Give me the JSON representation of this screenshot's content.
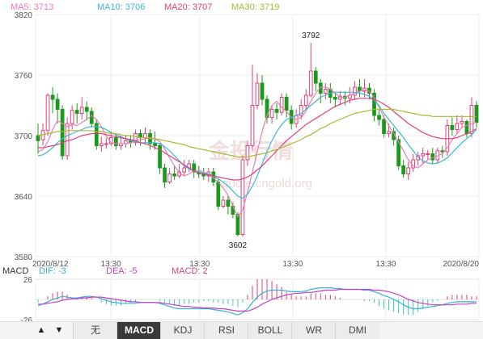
{
  "legend": {
    "ma5": {
      "label": "MA5: 3713",
      "color": "#e97fb4"
    },
    "ma10": {
      "label": "MA10: 3706",
      "color": "#3cb6d8"
    },
    "ma20": {
      "label": "MA20: 3707",
      "color": "#e0407a"
    },
    "ma30": {
      "label": "MA30: 3719",
      "color": "#a8b830"
    }
  },
  "macd_legend": {
    "title": "MACD",
    "dif": {
      "label": "DIF: -3",
      "color": "#33b3d9"
    },
    "dea": {
      "label": "DEA: -5",
      "color": "#c43fc4"
    },
    "macd": {
      "label": "MACD: 2",
      "color": "#e0407a"
    }
  },
  "watermark": {
    "text": "金投行情",
    "url": "quote.cngold.org"
  },
  "toolbar": {
    "tabs": [
      "无",
      "MACD",
      "KDJ",
      "RSI",
      "BOLL",
      "WR",
      "DMI"
    ],
    "active": "MACD",
    "up_arrow": "▲",
    "down_arrow": "▼"
  },
  "chart_data": [
    {
      "type": "candlestick",
      "ylim": [
        3580,
        3820
      ],
      "y_ticks": [
        "3820",
        "3760",
        "3700",
        "3640",
        "3580"
      ],
      "x_tick_labels": [
        "2020/8/12",
        "13:30",
        "13:30",
        "13:30",
        "13:30",
        "2020/8/20"
      ],
      "annotations": {
        "high": "3792",
        "low": "3602"
      },
      "up_color": "#e0407a",
      "down_color": "#1a9a1a",
      "candles": [
        [
          3700,
          3695,
          3712,
          3682
        ],
        [
          3696,
          3705,
          3712,
          3690
        ],
        [
          3705,
          3740,
          3742,
          3700
        ],
        [
          3740,
          3736,
          3748,
          3722
        ],
        [
          3736,
          3726,
          3742,
          3712
        ],
        [
          3726,
          3680,
          3730,
          3676
        ],
        [
          3680,
          3712,
          3718,
          3676
        ],
        [
          3712,
          3725,
          3730,
          3706
        ],
        [
          3725,
          3722,
          3732,
          3712
        ],
        [
          3722,
          3728,
          3738,
          3716
        ],
        [
          3728,
          3724,
          3734,
          3715
        ],
        [
          3724,
          3712,
          3728,
          3708
        ],
        [
          3712,
          3690,
          3716,
          3686
        ],
        [
          3690,
          3692,
          3699,
          3684
        ],
        [
          3692,
          3692,
          3698,
          3687
        ],
        [
          3692,
          3698,
          3704,
          3690
        ],
        [
          3698,
          3690,
          3702,
          3686
        ],
        [
          3690,
          3692,
          3700,
          3686
        ],
        [
          3692,
          3695,
          3700,
          3688
        ],
        [
          3695,
          3693,
          3700,
          3688
        ],
        [
          3693,
          3702,
          3706,
          3690
        ],
        [
          3702,
          3698,
          3706,
          3690
        ],
        [
          3698,
          3702,
          3708,
          3692
        ],
        [
          3702,
          3692,
          3706,
          3686
        ],
        [
          3692,
          3690,
          3704,
          3686
        ],
        [
          3690,
          3668,
          3692,
          3662
        ],
        [
          3668,
          3654,
          3672,
          3648
        ],
        [
          3654,
          3662,
          3668,
          3652
        ],
        [
          3662,
          3660,
          3670,
          3656
        ],
        [
          3660,
          3664,
          3672,
          3658
        ],
        [
          3664,
          3668,
          3676,
          3660
        ],
        [
          3668,
          3672,
          3676,
          3664
        ],
        [
          3672,
          3664,
          3676,
          3658
        ],
        [
          3664,
          3662,
          3670,
          3658
        ],
        [
          3662,
          3660,
          3668,
          3656
        ],
        [
          3660,
          3664,
          3668,
          3654
        ],
        [
          3664,
          3654,
          3668,
          3650
        ],
        [
          3654,
          3630,
          3658,
          3626
        ],
        [
          3630,
          3636,
          3640,
          3628
        ],
        [
          3636,
          3630,
          3640,
          3622
        ],
        [
          3630,
          3622,
          3634,
          3618
        ],
        [
          3622,
          3602,
          3624,
          3600
        ],
        [
          3602,
          3676,
          3680,
          3600
        ],
        [
          3676,
          3690,
          3695,
          3670
        ],
        [
          3690,
          3730,
          3770,
          3686
        ],
        [
          3730,
          3752,
          3762,
          3726
        ],
        [
          3752,
          3736,
          3760,
          3730
        ],
        [
          3736,
          3718,
          3740,
          3712
        ],
        [
          3718,
          3726,
          3730,
          3712
        ],
        [
          3726,
          3723,
          3732,
          3716
        ],
        [
          3723,
          3738,
          3742,
          3720
        ],
        [
          3738,
          3725,
          3742,
          3718
        ],
        [
          3725,
          3712,
          3730,
          3706
        ],
        [
          3712,
          3720,
          3726,
          3708
        ],
        [
          3720,
          3730,
          3736,
          3716
        ],
        [
          3730,
          3740,
          3746,
          3726
        ],
        [
          3740,
          3764,
          3792,
          3738
        ],
        [
          3764,
          3752,
          3768,
          3744
        ],
        [
          3752,
          3742,
          3756,
          3732
        ],
        [
          3742,
          3746,
          3752,
          3736
        ],
        [
          3746,
          3738,
          3752,
          3732
        ],
        [
          3738,
          3736,
          3742,
          3728
        ],
        [
          3736,
          3739,
          3744,
          3730
        ],
        [
          3739,
          3737,
          3744,
          3730
        ],
        [
          3737,
          3740,
          3748,
          3732
        ],
        [
          3740,
          3748,
          3754,
          3736
        ],
        [
          3748,
          3744,
          3756,
          3738
        ],
        [
          3744,
          3747,
          3756,
          3738
        ],
        [
          3747,
          3742,
          3752,
          3736
        ],
        [
          3742,
          3720,
          3746,
          3714
        ],
        [
          3720,
          3716,
          3726,
          3710
        ],
        [
          3716,
          3702,
          3720,
          3698
        ],
        [
          3702,
          3704,
          3712,
          3698
        ],
        [
          3704,
          3696,
          3708,
          3690
        ],
        [
          3696,
          3670,
          3700,
          3666
        ],
        [
          3670,
          3662,
          3676,
          3658
        ],
        [
          3662,
          3668,
          3674,
          3656
        ],
        [
          3668,
          3676,
          3682,
          3664
        ],
        [
          3676,
          3680,
          3684,
          3670
        ],
        [
          3680,
          3682,
          3688,
          3672
        ],
        [
          3682,
          3682,
          3686,
          3676
        ],
        [
          3682,
          3676,
          3688,
          3672
        ],
        [
          3676,
          3685,
          3688,
          3672
        ],
        [
          3685,
          3684,
          3690,
          3678
        ],
        [
          3684,
          3710,
          3716,
          3680
        ],
        [
          3710,
          3706,
          3718,
          3700
        ],
        [
          3706,
          3712,
          3720,
          3702
        ],
        [
          3712,
          3714,
          3720,
          3708
        ],
        [
          3714,
          3702,
          3716,
          3698
        ],
        [
          3702,
          3730,
          3738,
          3698
        ],
        [
          3730,
          3713,
          3734,
          3708
        ]
      ],
      "series": [
        {
          "name": "MA5",
          "color": "#e97fb4",
          "values": [
            3684,
            3686,
            3694,
            3706,
            3715,
            3712,
            3709,
            3711,
            3710,
            3713,
            3716,
            3720,
            3716,
            3709,
            3700,
            3693,
            3692,
            3692,
            3692,
            3693,
            3695,
            3696,
            3697,
            3698,
            3697,
            3694,
            3687,
            3678,
            3670,
            3663,
            3660,
            3662,
            3665,
            3666,
            3664,
            3661,
            3658,
            3654,
            3648,
            3641,
            3630,
            3620,
            3626,
            3644,
            3664,
            3684,
            3704,
            3720,
            3730,
            3734,
            3728,
            3724,
            3718,
            3716,
            3718,
            3724,
            3734,
            3742,
            3748,
            3748,
            3746,
            3742,
            3738,
            3738,
            3740,
            3742,
            3744,
            3745,
            3744,
            3738,
            3728,
            3718,
            3710,
            3702,
            3694,
            3685,
            3676,
            3670,
            3668,
            3672,
            3676,
            3678,
            3680,
            3682,
            3688,
            3696,
            3702,
            3708,
            3710,
            3712,
            3713
          ]
        },
        {
          "name": "MA10",
          "color": "#3cb6d8",
          "values": [
            3680,
            3681,
            3684,
            3688,
            3693,
            3697,
            3700,
            3702,
            3704,
            3706,
            3708,
            3709,
            3709,
            3708,
            3706,
            3703,
            3701,
            3699,
            3697,
            3695,
            3694,
            3693,
            3693,
            3693,
            3693,
            3692,
            3689,
            3685,
            3680,
            3675,
            3670,
            3667,
            3665,
            3664,
            3663,
            3662,
            3660,
            3657,
            3654,
            3650,
            3645,
            3640,
            3638,
            3642,
            3650,
            3660,
            3672,
            3684,
            3695,
            3704,
            3711,
            3716,
            3718,
            3720,
            3722,
            3726,
            3730,
            3734,
            3738,
            3740,
            3742,
            3743,
            3743,
            3743,
            3743,
            3743,
            3742,
            3741,
            3739,
            3735,
            3730,
            3722,
            3716,
            3710,
            3704,
            3698,
            3691,
            3685,
            3679,
            3675,
            3673,
            3672,
            3673,
            3675,
            3678,
            3683,
            3688,
            3693,
            3697,
            3701,
            3706
          ]
        },
        {
          "name": "MA20",
          "color": "#e0407a",
          "values": [
            3688,
            3688,
            3689,
            3690,
            3691,
            3693,
            3695,
            3696,
            3698,
            3700,
            3701,
            3702,
            3702,
            3702,
            3701,
            3700,
            3699,
            3698,
            3697,
            3696,
            3695,
            3693,
            3692,
            3690,
            3688,
            3686,
            3683,
            3680,
            3677,
            3674,
            3671,
            3668,
            3665,
            3663,
            3662,
            3661,
            3660,
            3659,
            3658,
            3657,
            3656,
            3656,
            3657,
            3659,
            3662,
            3666,
            3670,
            3675,
            3680,
            3685,
            3690,
            3695,
            3699,
            3703,
            3707,
            3711,
            3714,
            3717,
            3720,
            3723,
            3726,
            3729,
            3731,
            3733,
            3735,
            3736,
            3737,
            3737,
            3737,
            3736,
            3734,
            3731,
            3728,
            3724,
            3720,
            3716,
            3712,
            3709,
            3706,
            3703,
            3701,
            3699,
            3698,
            3697,
            3697,
            3697,
            3698,
            3700,
            3702,
            3704,
            3707
          ]
        },
        {
          "name": "MA30",
          "color": "#a8b830",
          "values": [
            3700,
            3701,
            3702,
            3703,
            3704,
            3704,
            3705,
            3705,
            3705,
            3705,
            3705,
            3705,
            3704,
            3704,
            3703,
            3702,
            3702,
            3701,
            3700,
            3700,
            3699,
            3698,
            3698,
            3697,
            3697,
            3696,
            3695,
            3694,
            3693,
            3692,
            3691,
            3689,
            3688,
            3687,
            3686,
            3685,
            3684,
            3683,
            3682,
            3681,
            3680,
            3679,
            3679,
            3679,
            3680,
            3681,
            3682,
            3683,
            3685,
            3686,
            3688,
            3690,
            3692,
            3694,
            3696,
            3699,
            3701,
            3704,
            3707,
            3709,
            3712,
            3714,
            3716,
            3718,
            3720,
            3722,
            3723,
            3724,
            3725,
            3726,
            3726,
            3726,
            3726,
            3726,
            3725,
            3724,
            3723,
            3722,
            3721,
            3720,
            3720,
            3719,
            3719,
            3719,
            3719,
            3719,
            3719,
            3719,
            3719,
            3719,
            3719
          ]
        }
      ]
    },
    {
      "type": "macd",
      "ylim": [
        -26,
        26
      ],
      "y_ticks": [
        "26",
        "-26"
      ],
      "dif": [
        -8,
        -6,
        -3,
        0,
        2,
        4,
        3,
        2,
        2,
        3,
        4,
        4,
        3,
        1,
        -1,
        -3,
        -4,
        -5,
        -5,
        -5,
        -5,
        -4,
        -4,
        -4,
        -4,
        -5,
        -7,
        -9,
        -11,
        -12,
        -12,
        -12,
        -12,
        -12,
        -12,
        -12,
        -13,
        -14,
        -15,
        -16,
        -18,
        -20,
        -17,
        -12,
        -4,
        3,
        8,
        11,
        12,
        12,
        12,
        11,
        10,
        10,
        10,
        11,
        13,
        14,
        15,
        15,
        15,
        14,
        14,
        13,
        13,
        13,
        13,
        12,
        12,
        10,
        8,
        5,
        3,
        0,
        -3,
        -7,
        -10,
        -12,
        -12,
        -11,
        -10,
        -9,
        -8,
        -7,
        -5,
        -4,
        -3,
        -3,
        -3,
        -3,
        -3
      ],
      "dea": [
        -6,
        -6,
        -5,
        -4,
        -3,
        -1,
        0,
        1,
        1,
        2,
        2,
        3,
        3,
        3,
        2,
        1,
        0,
        -1,
        -2,
        -3,
        -3,
        -4,
        -4,
        -4,
        -4,
        -4,
        -5,
        -6,
        -7,
        -8,
        -9,
        -9,
        -10,
        -10,
        -11,
        -11,
        -11,
        -12,
        -12,
        -13,
        -14,
        -15,
        -15,
        -15,
        -13,
        -10,
        -6,
        -3,
        0,
        2,
        4,
        6,
        7,
        8,
        8,
        9,
        9,
        10,
        11,
        12,
        12,
        12,
        13,
        13,
        13,
        13,
        13,
        13,
        13,
        12,
        12,
        11,
        10,
        8,
        6,
        3,
        0,
        -2,
        -4,
        -5,
        -6,
        -7,
        -7,
        -7,
        -7,
        -7,
        -6,
        -6,
        -6,
        -5,
        -5
      ]
    }
  ]
}
